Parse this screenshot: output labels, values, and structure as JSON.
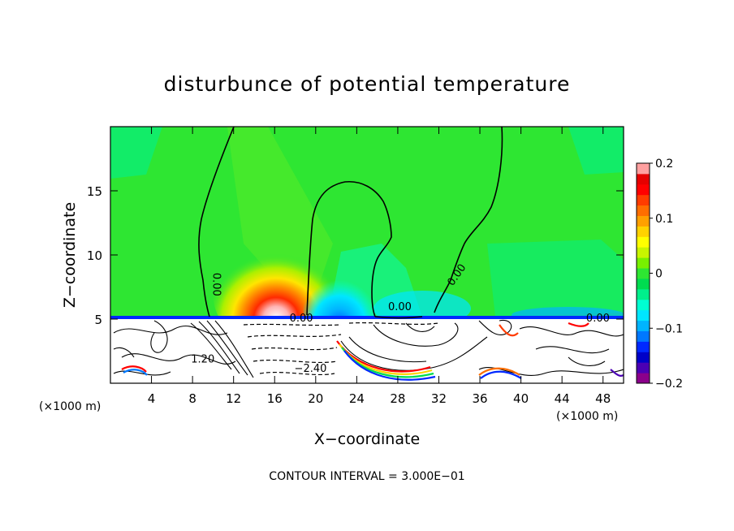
{
  "chart_data": {
    "type": "heatmap",
    "title": "disturbunce of potential temperature",
    "xlabel": "X−coordinate",
    "ylabel": "Z−coordinate",
    "x_unit_left": "(×1000 m)",
    "x_unit_right": "(×1000 m)",
    "xlim": [
      0,
      50
    ],
    "ylim": [
      0,
      20
    ],
    "x_ticks": [
      4,
      8,
      12,
      16,
      20,
      24,
      28,
      32,
      36,
      40,
      44,
      48
    ],
    "y_ticks": [
      5,
      10,
      15
    ],
    "colorbar": {
      "range": [
        -0.2,
        0.2
      ],
      "ticks": [
        {
          "value": 0.2,
          "label": "0.2"
        },
        {
          "value": 0.1,
          "label": "0.1"
        },
        {
          "value": 0.0,
          "label": "0"
        },
        {
          "value": -0.1,
          "label": "−0.1"
        },
        {
          "value": -0.2,
          "label": "−0.2"
        }
      ],
      "colors": [
        "#8b008b",
        "#4b00b4",
        "#0000c8",
        "#0028ff",
        "#0078ff",
        "#00b4ff",
        "#00e6ff",
        "#00ffd2",
        "#00f08c",
        "#00dc50",
        "#2ee632",
        "#78f000",
        "#c8f500",
        "#ffff00",
        "#ffd200",
        "#ffa000",
        "#ff6e00",
        "#ff3c00",
        "#ff0000",
        "#e60000",
        "#ffa0a0"
      ]
    },
    "contour_labels": [
      {
        "text": "0.00",
        "x": 10,
        "z": 7.7
      },
      {
        "text": "0.00",
        "x": 34,
        "z": 8.3
      },
      {
        "text": "0.00",
        "x": 28.2,
        "z": 5.7
      },
      {
        "text": "0.00",
        "x": 18.6,
        "z": 4.8
      },
      {
        "text": "0.00",
        "x": 47.5,
        "z": 4.8
      },
      {
        "text": "1.20",
        "x": 9,
        "z": 1.6
      },
      {
        "text": "−2.40",
        "x": 19.5,
        "z": 0.9
      }
    ],
    "contour_interval": "CONTOUR INTERVAL = 3.000E−01"
  }
}
